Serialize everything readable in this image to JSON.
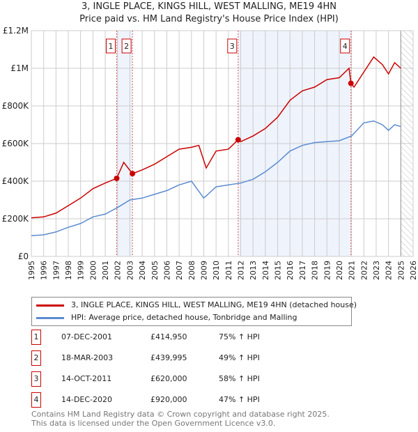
{
  "title": "3, INGLE PLACE, KINGS HILL, WEST MALLING, ME19 4HN",
  "subtitle": "Price paid vs. HM Land Registry's House Price Index (HPI)",
  "colors": {
    "property": "#cc0000",
    "hpi": "#5b8bd0",
    "shade": "#eef3fc"
  },
  "chart_data": {
    "type": "line",
    "xlim": [
      1995,
      2026
    ],
    "ylim": [
      0,
      1200000
    ],
    "x_ticks": [
      "1995",
      "1996",
      "1997",
      "1998",
      "1999",
      "2000",
      "2001",
      "2002",
      "2003",
      "2004",
      "2005",
      "2006",
      "2007",
      "2008",
      "2009",
      "2010",
      "2011",
      "2012",
      "2013",
      "2014",
      "2015",
      "2016",
      "2017",
      "2018",
      "2019",
      "2020",
      "2021",
      "2022",
      "2023",
      "2024",
      "2025",
      "2026"
    ],
    "y_ticks": [
      {
        "v": 0,
        "label": "£0"
      },
      {
        "v": 200000,
        "label": "£200K"
      },
      {
        "v": 400000,
        "label": "£400K"
      },
      {
        "v": 600000,
        "label": "£600K"
      },
      {
        "v": 800000,
        "label": "£800K"
      },
      {
        "v": 1000000,
        "label": "£1M"
      },
      {
        "v": 1200000,
        "label": "£1.2M"
      }
    ],
    "grid": true,
    "forecast_from": 2025,
    "series": [
      {
        "name": "3, INGLE PLACE, KINGS HILL, WEST MALLING, ME19 4HN (detached house)",
        "color": "#cc0000",
        "x": [
          1995,
          1996,
          1997,
          1998,
          1999,
          2000,
          2001,
          2001.93,
          2002.5,
          2003.21,
          2004,
          2005,
          2006,
          2007,
          2008,
          2008.6,
          2009.2,
          2010,
          2011,
          2011.79,
          2012,
          2013,
          2014,
          2015,
          2016,
          2017,
          2018,
          2019,
          2020,
          2020.8,
          2020.95,
          2021.2,
          2022,
          2022.8,
          2023.5,
          2024,
          2024.5,
          2025
        ],
        "y": [
          205000,
          210000,
          230000,
          270000,
          310000,
          360000,
          390000,
          414950,
          500000,
          439995,
          460000,
          490000,
          530000,
          570000,
          580000,
          590000,
          470000,
          560000,
          570000,
          620000,
          610000,
          640000,
          680000,
          740000,
          830000,
          880000,
          900000,
          940000,
          950000,
          1000000,
          920000,
          900000,
          980000,
          1060000,
          1020000,
          970000,
          1030000,
          1000000
        ]
      },
      {
        "name": "HPI: Average price, detached house, Tonbridge and Malling",
        "color": "#5b8bd0",
        "x": [
          1995,
          1996,
          1997,
          1998,
          1999,
          2000,
          2001,
          2002,
          2003,
          2004,
          2005,
          2006,
          2007,
          2008,
          2009,
          2010,
          2011,
          2012,
          2013,
          2014,
          2015,
          2016,
          2017,
          2018,
          2019,
          2020,
          2021,
          2022,
          2022.8,
          2023.5,
          2024,
          2024.5,
          2025
        ],
        "y": [
          110000,
          115000,
          130000,
          155000,
          175000,
          210000,
          225000,
          260000,
          300000,
          310000,
          330000,
          350000,
          380000,
          400000,
          310000,
          370000,
          380000,
          390000,
          410000,
          450000,
          500000,
          560000,
          590000,
          605000,
          610000,
          615000,
          640000,
          710000,
          720000,
          700000,
          670000,
          700000,
          690000
        ]
      }
    ],
    "sales": [
      {
        "id": "1",
        "x": 2001.93,
        "y": 414950
      },
      {
        "id": "2",
        "x": 2003.21,
        "y": 439995
      },
      {
        "id": "3",
        "x": 2011.79,
        "y": 620000
      },
      {
        "id": "4",
        "x": 2020.95,
        "y": 920000
      }
    ],
    "shaded": [
      [
        2001.93,
        2003.21
      ],
      [
        2011.79,
        2020.95
      ]
    ]
  },
  "legend": {
    "property": "3, INGLE PLACE, KINGS HILL, WEST MALLING, ME19 4HN (detached house)",
    "hpi": "HPI: Average price, detached house, Tonbridge and Malling"
  },
  "transactions": [
    {
      "id": "1",
      "date": "07-DEC-2001",
      "price": "£414,950",
      "hpi": "75% ↑ HPI"
    },
    {
      "id": "2",
      "date": "18-MAR-2003",
      "price": "£439,995",
      "hpi": "49% ↑ HPI"
    },
    {
      "id": "3",
      "date": "14-OCT-2011",
      "price": "£620,000",
      "hpi": "58% ↑ HPI"
    },
    {
      "id": "4",
      "date": "14-DEC-2020",
      "price": "£920,000",
      "hpi": "47% ↑ HPI"
    }
  ],
  "footer": {
    "line1": "Contains HM Land Registry data © Crown copyright and database right 2025.",
    "line2": "This data is licensed under the Open Government Licence v3.0."
  }
}
